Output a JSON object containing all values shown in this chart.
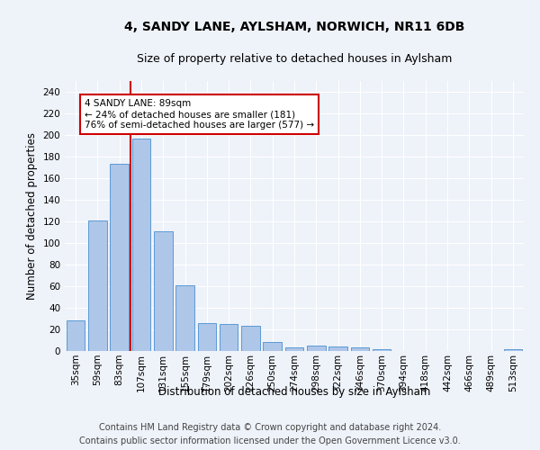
{
  "title": "4, SANDY LANE, AYLSHAM, NORWICH, NR11 6DB",
  "subtitle": "Size of property relative to detached houses in Aylsham",
  "xlabel": "Distribution of detached houses by size in Aylsham",
  "ylabel": "Number of detached properties",
  "categories": [
    "35sqm",
    "59sqm",
    "83sqm",
    "107sqm",
    "131sqm",
    "155sqm",
    "179sqm",
    "202sqm",
    "226sqm",
    "250sqm",
    "274sqm",
    "298sqm",
    "322sqm",
    "346sqm",
    "370sqm",
    "394sqm",
    "418sqm",
    "442sqm",
    "466sqm",
    "489sqm",
    "513sqm"
  ],
  "bar_values": [
    28,
    121,
    173,
    197,
    111,
    61,
    26,
    25,
    23,
    8,
    3,
    5,
    4,
    3,
    2,
    0,
    0,
    0,
    0,
    0,
    2
  ],
  "bar_color": "#aec6e8",
  "bar_edge_color": "#5b9bd5",
  "ylim": [
    0,
    250
  ],
  "yticks": [
    0,
    20,
    40,
    60,
    80,
    100,
    120,
    140,
    160,
    180,
    200,
    220,
    240
  ],
  "vline_color": "#cc0000",
  "vline_pos": 2.5,
  "annotation_text": "4 SANDY LANE: 89sqm\n← 24% of detached houses are smaller (181)\n76% of semi-detached houses are larger (577) →",
  "annotation_box_color": "#ffffff",
  "annotation_box_edge_color": "#cc0000",
  "footer_line1": "Contains HM Land Registry data © Crown copyright and database right 2024.",
  "footer_line2": "Contains public sector information licensed under the Open Government Licence v3.0.",
  "bg_color": "#eef2f9",
  "plot_bg_color": "#eef2f9",
  "title_fontsize": 10,
  "subtitle_fontsize": 9,
  "axis_label_fontsize": 8.5,
  "tick_fontsize": 7.5,
  "footer_fontsize": 7,
  "annotation_fontsize": 7.5
}
